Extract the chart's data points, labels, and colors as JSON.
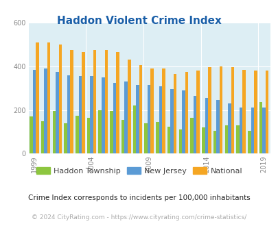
{
  "title": "Haddon Violent Crime Index",
  "years": [
    1999,
    2000,
    2001,
    2002,
    2003,
    2004,
    2005,
    2006,
    2007,
    2008,
    2009,
    2010,
    2011,
    2012,
    2013,
    2014,
    2015,
    2016,
    2017,
    2018,
    2019
  ],
  "haddon": [
    170,
    150,
    195,
    140,
    175,
    165,
    200,
    195,
    155,
    220,
    140,
    145,
    125,
    110,
    165,
    120,
    105,
    130,
    130,
    105,
    235
  ],
  "nj": [
    385,
    390,
    375,
    360,
    355,
    355,
    350,
    325,
    330,
    315,
    315,
    310,
    295,
    290,
    265,
    255,
    245,
    230,
    210,
    210,
    210
  ],
  "national": [
    510,
    510,
    500,
    475,
    465,
    475,
    475,
    465,
    430,
    405,
    390,
    390,
    365,
    375,
    380,
    395,
    400,
    395,
    385,
    380,
    380
  ],
  "haddon_color": "#8dc63f",
  "nj_color": "#5b9bd5",
  "national_color": "#f5a623",
  "bg_color": "#ddeef4",
  "title_color": "#1a5fa8",
  "ylabel_max": 600,
  "yticks": [
    0,
    200,
    400,
    600
  ],
  "subtitle": "Crime Index corresponds to incidents per 100,000 inhabitants",
  "footer": "© 2024 CityRating.com - https://www.cityrating.com/crime-statistics/",
  "legend_labels": [
    "Haddon Township",
    "New Jersey",
    "National"
  ],
  "xtick_years": [
    1999,
    2004,
    2009,
    2014,
    2019
  ]
}
